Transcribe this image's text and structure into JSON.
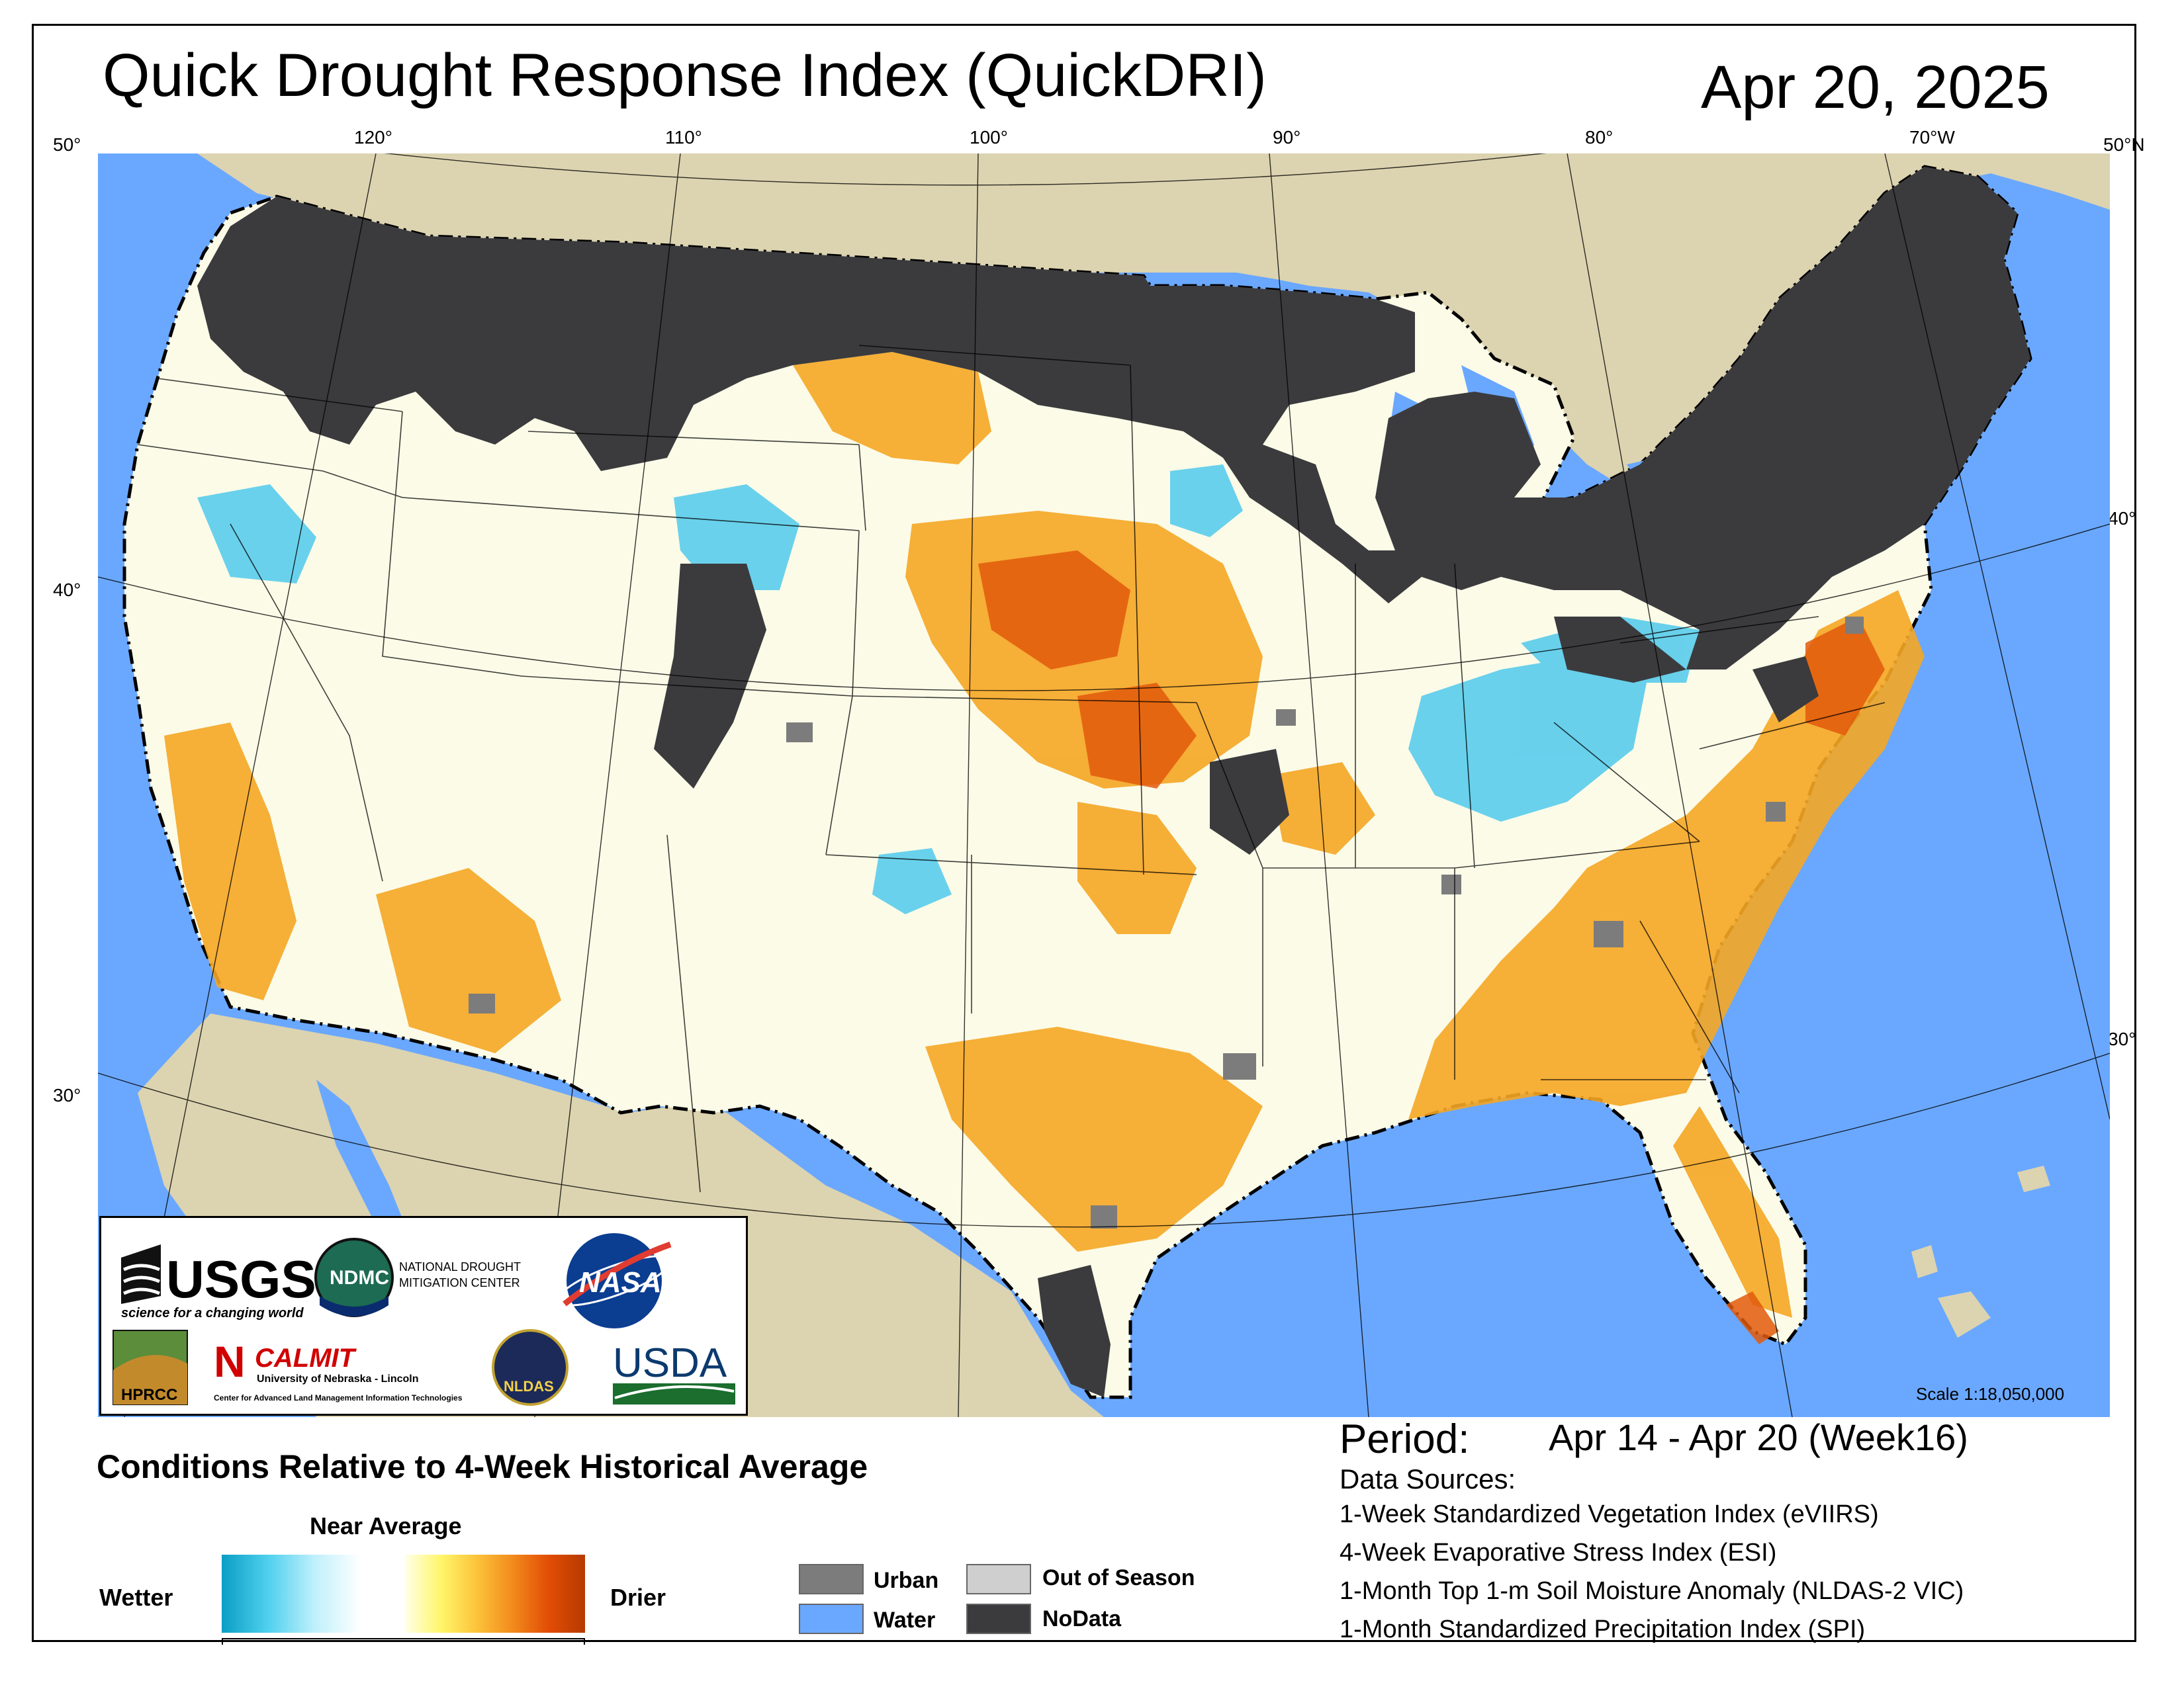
{
  "header": {
    "title": "Quick Drought Response Index (QuickDRI)",
    "date": "Apr 20, 2025"
  },
  "graticule": {
    "top_labels": [
      "50°",
      "120°",
      "110°",
      "100°",
      "90°",
      "80°",
      "70°W",
      "50°N"
    ],
    "left_labels": [
      "40°",
      "30°"
    ],
    "right_labels": [
      "40°",
      "30°"
    ]
  },
  "map": {
    "scale": "Scale 1:18,050,000",
    "colors": {
      "canada_mexico": "#dcd3b0",
      "water": "#6aa8ff",
      "nodata": "#3b3b3e",
      "near_average": "#fbfbe8",
      "drier": "#f5a623",
      "much_drier": "#e2590a",
      "wetter": "#2bb6dd",
      "urban": "#7c7c7c",
      "boundary": "#000000"
    }
  },
  "logos": {
    "usgs": "USGS",
    "usgs_tagline": "science for a changing world",
    "ndmc": "NDMC",
    "ndmc_name_1": "NATIONAL DROUGHT",
    "ndmc_name_2": "MITIGATION CENTER",
    "nasa": "NASA",
    "hprcc": "HPRCC",
    "calmit": "CALMIT",
    "unl": "University of Nebraska - Lincoln",
    "calmit_full": "Center for Advanced Land Management Information Technologies",
    "nldas": "NLDAS",
    "usda": "USDA"
  },
  "legend": {
    "title": "Conditions Relative to 4-Week Historical Average",
    "near_average": "Near Average",
    "wetter": "Wetter",
    "drier": "Drier",
    "categories": [
      {
        "label": "Urban",
        "color": "#7c7c7c"
      },
      {
        "label": "Water",
        "color": "#6aa8ff"
      },
      {
        "label": "Out of Season",
        "color": "#cfcfcf"
      },
      {
        "label": "NoData",
        "color": "#3b3b3e"
      }
    ]
  },
  "info": {
    "period_label": "Period:",
    "period_value": "Apr 14 - Apr 20 (Week16)",
    "data_sources_title": "Data Sources:",
    "data_sources": [
      "1-Week Standardized Vegetation Index (eVIIRS)",
      "4-Week Evaporative Stress Index (ESI)",
      "1-Month Top 1-m Soil Moisture Anomaly (NLDAS-2 VIC)",
      "1-Month Standardized Precipitation Index (SPI)"
    ]
  }
}
